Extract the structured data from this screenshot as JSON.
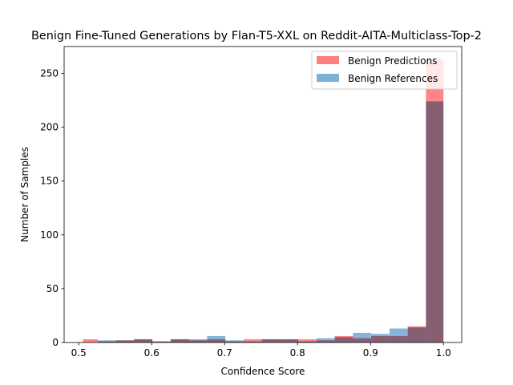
{
  "chart_data": {
    "type": "bar",
    "title": "Benign Fine-Tuned Generations by Flan-T5-XXL on Reddit-AITA-Multiclass-Top-2",
    "xlabel": "Confidence Score",
    "ylabel": "Number of Samples",
    "xlim": [
      0.48,
      1.025
    ],
    "ylim": [
      0,
      275
    ],
    "xticks": [
      0.5,
      0.6,
      0.7,
      0.8,
      0.9,
      1.0
    ],
    "xtick_labels": [
      "0.5",
      "0.6",
      "0.7",
      "0.8",
      "0.9",
      "1.0"
    ],
    "yticks": [
      0,
      50,
      100,
      150,
      200,
      250
    ],
    "ytick_labels": [
      "0",
      "50",
      "100",
      "150",
      "200",
      "250"
    ],
    "grid": false,
    "legend_position": "top-right",
    "series": [
      {
        "name": "Benign Predictions",
        "color": "#ff7f7f",
        "bins": [
          [
            0.506,
            0.526,
            3
          ],
          [
            0.526,
            0.551,
            1
          ],
          [
            0.551,
            0.576,
            2
          ],
          [
            0.576,
            0.601,
            3
          ],
          [
            0.601,
            0.626,
            1
          ],
          [
            0.626,
            0.651,
            3
          ],
          [
            0.651,
            0.676,
            2
          ],
          [
            0.676,
            0.701,
            3
          ],
          [
            0.701,
            0.726,
            1
          ],
          [
            0.726,
            0.751,
            3
          ],
          [
            0.751,
            0.776,
            3
          ],
          [
            0.776,
            0.801,
            3
          ],
          [
            0.801,
            0.826,
            3
          ],
          [
            0.826,
            0.851,
            2
          ],
          [
            0.851,
            0.876,
            6
          ],
          [
            0.876,
            0.901,
            4
          ],
          [
            0.901,
            0.926,
            6
          ],
          [
            0.926,
            0.951,
            6
          ],
          [
            0.951,
            0.976,
            15
          ],
          [
            0.976,
            1.0,
            263
          ]
        ]
      },
      {
        "name": "Benign References",
        "color": "#7fb0d8",
        "bins": [
          [
            0.526,
            0.551,
            2
          ],
          [
            0.551,
            0.576,
            2
          ],
          [
            0.576,
            0.601,
            3
          ],
          [
            0.601,
            0.626,
            1
          ],
          [
            0.626,
            0.651,
            3
          ],
          [
            0.651,
            0.676,
            3
          ],
          [
            0.676,
            0.701,
            6
          ],
          [
            0.701,
            0.726,
            2
          ],
          [
            0.726,
            0.751,
            1
          ],
          [
            0.751,
            0.776,
            3
          ],
          [
            0.776,
            0.801,
            3
          ],
          [
            0.801,
            0.826,
            1
          ],
          [
            0.826,
            0.851,
            4
          ],
          [
            0.851,
            0.876,
            5
          ],
          [
            0.876,
            0.901,
            9
          ],
          [
            0.901,
            0.926,
            8
          ],
          [
            0.926,
            0.951,
            13
          ],
          [
            0.951,
            0.976,
            14
          ],
          [
            0.976,
            1.0,
            224
          ]
        ]
      }
    ]
  }
}
